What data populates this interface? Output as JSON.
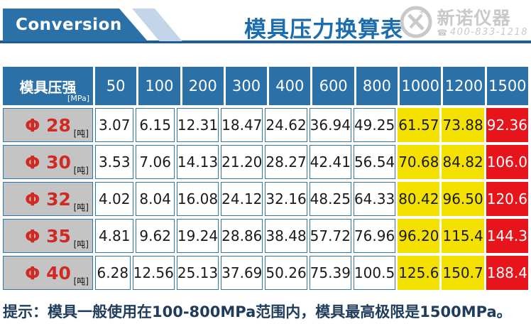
{
  "header": {
    "conversion_label": "Conversion",
    "title": "模具压力换算表",
    "logo": {
      "brand": "新诺仪器",
      "phone": "400-833-1218"
    }
  },
  "colors": {
    "accent_blue": "#2B71A7",
    "rule_blue": "#1D5C9C",
    "banner_accent": "#C3D6E9",
    "title_blue": "#1B6DAD",
    "border_blue": "#2E75A8",
    "label_gray": "#C4C4C4",
    "label_red": "#D02A22",
    "warn_yellow": "#F5E100",
    "max_red": "#E8141B",
    "tip_navy": "#1F3C5C",
    "logo_gray": "#C9C9C9"
  },
  "chart_data": {
    "type": "table",
    "title": "模具压力换算表",
    "corner_header": {
      "label": "模具压强",
      "unit": "[MPa]"
    },
    "columns": [
      "50",
      "100",
      "200",
      "300",
      "400",
      "600",
      "800",
      "1000",
      "1200",
      "1500"
    ],
    "column_styles": [
      "normal",
      "normal",
      "normal",
      "normal",
      "normal",
      "normal",
      "normal",
      "warn",
      "warn",
      "max"
    ],
    "rows": [
      {
        "label": "Φ 28",
        "unit": "[吨]",
        "values": [
          "3.07",
          "6.15",
          "12.31",
          "18.47",
          "24.62",
          "36.94",
          "49.25",
          "61.57",
          "73.88",
          "92.36"
        ]
      },
      {
        "label": "Φ 30",
        "unit": "[吨]",
        "values": [
          "3.53",
          "7.06",
          "14.13",
          "21.20",
          "28.27",
          "42.41",
          "56.54",
          "70.68",
          "84.82",
          "106.0"
        ]
      },
      {
        "label": "Φ 32",
        "unit": "[吨]",
        "values": [
          "4.02",
          "8.04",
          "16.08",
          "24.12",
          "32.16",
          "48.25",
          "64.33",
          "80.42",
          "96.50",
          "120.6"
        ]
      },
      {
        "label": "Φ 35",
        "unit": "[吨]",
        "values": [
          "4.81",
          "9.62",
          "19.24",
          "28.86",
          "38.48",
          "57.72",
          "76.96",
          "96.20",
          "115.4",
          "144.3"
        ]
      },
      {
        "label": "Φ 40",
        "unit": "[吨]",
        "values": [
          "6.28",
          "12.56",
          "25.13",
          "37.69",
          "50.26",
          "75.39",
          "100.5",
          "125.6",
          "150.7",
          "188.4"
        ]
      }
    ]
  },
  "footer": {
    "tip": "提示：模具一般使用在100-800MPa范围内，模具最高极限是1500MPa。"
  }
}
